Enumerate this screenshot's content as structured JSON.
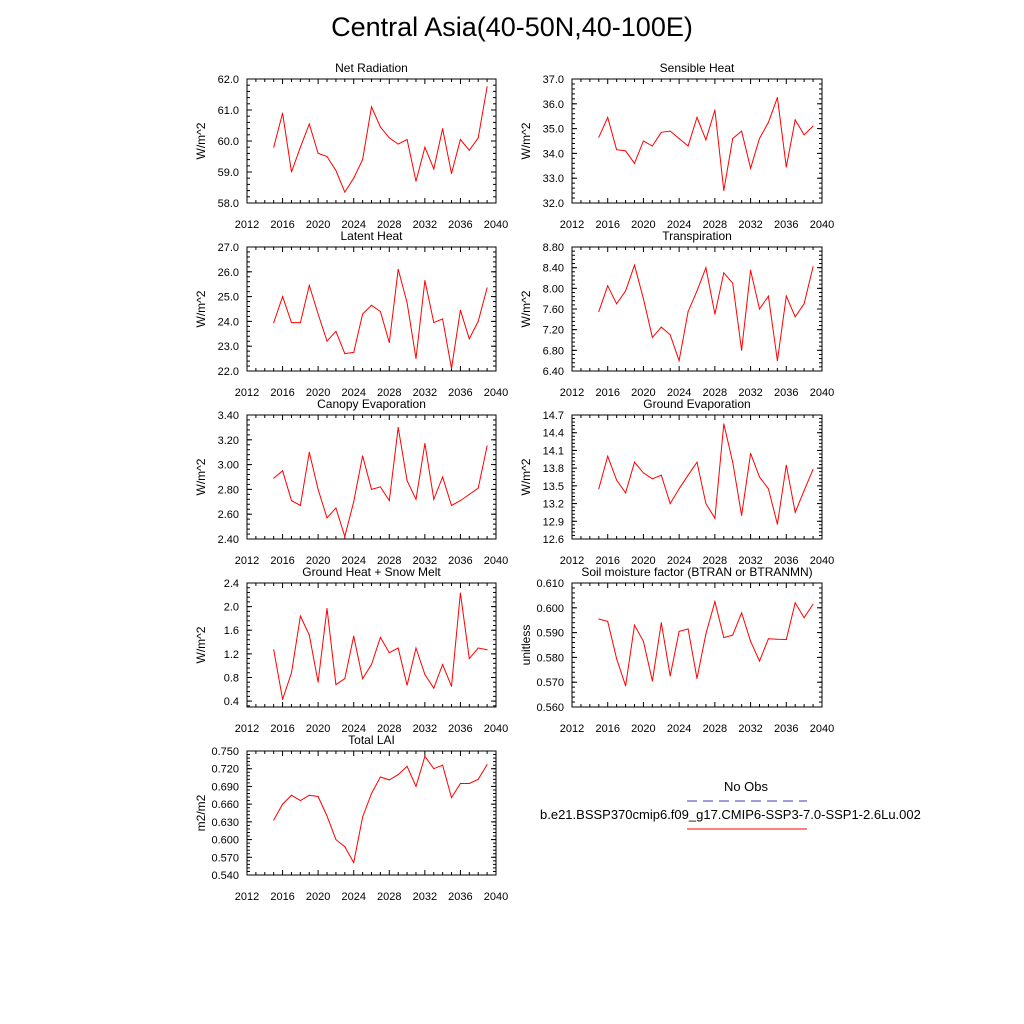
{
  "title": "Central Asia(40-50N,40-100E)",
  "colors": {
    "series": "#ff0000",
    "obs": "#3b3bb8",
    "axis": "#000000"
  },
  "legend": {
    "obs_label": "No Obs",
    "run_label": "b.e21.BSSP370cmip6.f09_g17.CMIP6-SSP3-7.0-SSP1-2.6Lu.002"
  },
  "chart_data": [
    {
      "type": "line",
      "title": "Net Radiation",
      "ylabel": "W/m^2",
      "xlabel": "",
      "xlim": [
        2012,
        2040
      ],
      "ylim": [
        58.0,
        62.0
      ],
      "xticks": [
        "2012",
        "2016",
        "2020",
        "2024",
        "2028",
        "2032",
        "2036",
        "2040"
      ],
      "yticks": [
        "58.0",
        "59.0",
        "60.0",
        "61.0",
        "62.0"
      ],
      "x": [
        2015,
        2016,
        2017,
        2018,
        2019,
        2020,
        2021,
        2022,
        2023,
        2024,
        2025,
        2026,
        2027,
        2028,
        2029,
        2030,
        2031,
        2032,
        2033,
        2034,
        2035,
        2036,
        2037,
        2038,
        2039
      ],
      "series": [
        {
          "values": [
            59.8,
            60.9,
            59.0,
            59.8,
            60.55,
            59.6,
            59.5,
            59.05,
            58.35,
            58.8,
            59.4,
            61.1,
            60.45,
            60.1,
            59.9,
            60.05,
            58.7,
            59.8,
            59.1,
            60.4,
            58.95,
            60.05,
            59.7,
            60.1,
            61.75
          ]
        }
      ]
    },
    {
      "type": "line",
      "title": "Sensible Heat",
      "ylabel": "W/m^2",
      "xlabel": "",
      "xlim": [
        2012,
        2040
      ],
      "ylim": [
        32.0,
        37.0
      ],
      "xticks": [
        "2012",
        "2016",
        "2020",
        "2024",
        "2028",
        "2032",
        "2036",
        "2040"
      ],
      "yticks": [
        "32.0",
        "33.0",
        "34.0",
        "35.0",
        "36.0",
        "37.0"
      ],
      "x": [
        2015,
        2016,
        2017,
        2018,
        2019,
        2020,
        2021,
        2022,
        2023,
        2024,
        2025,
        2026,
        2027,
        2028,
        2029,
        2030,
        2031,
        2032,
        2033,
        2034,
        2035,
        2036,
        2037,
        2038,
        2039
      ],
      "series": [
        {
          "values": [
            34.65,
            35.45,
            34.15,
            34.1,
            33.6,
            34.5,
            34.3,
            34.85,
            34.9,
            34.6,
            34.3,
            35.45,
            34.55,
            35.75,
            32.5,
            34.6,
            34.9,
            33.4,
            34.6,
            35.25,
            36.25,
            33.45,
            35.35,
            34.75,
            35.1
          ]
        }
      ]
    },
    {
      "type": "line",
      "title": "Latent Heat",
      "ylabel": "W/m^2",
      "xlabel": "",
      "xlim": [
        2012,
        2040
      ],
      "ylim": [
        22.0,
        27.0
      ],
      "xticks": [
        "2012",
        "2016",
        "2020",
        "2024",
        "2028",
        "2032",
        "2036",
        "2040"
      ],
      "yticks": [
        "22.0",
        "23.0",
        "24.0",
        "25.0",
        "26.0",
        "27.0"
      ],
      "x": [
        2015,
        2016,
        2017,
        2018,
        2019,
        2020,
        2021,
        2022,
        2023,
        2024,
        2025,
        2026,
        2027,
        2028,
        2029,
        2030,
        2031,
        2032,
        2033,
        2034,
        2035,
        2036,
        2037,
        2038,
        2039
      ],
      "series": [
        {
          "values": [
            23.95,
            25.0,
            23.95,
            23.95,
            25.45,
            24.3,
            23.2,
            23.6,
            22.7,
            22.75,
            24.3,
            24.65,
            24.4,
            23.15,
            26.1,
            24.75,
            22.5,
            25.65,
            23.95,
            24.1,
            22.1,
            24.45,
            23.3,
            24.0,
            25.35
          ]
        }
      ]
    },
    {
      "type": "line",
      "title": "Transpiration",
      "ylabel": "W/m^2",
      "xlabel": "",
      "xlim": [
        2012,
        2040
      ],
      "ylim": [
        6.4,
        8.8
      ],
      "xticks": [
        "2012",
        "2016",
        "2020",
        "2024",
        "2028",
        "2032",
        "2036",
        "2040"
      ],
      "yticks": [
        "6.40",
        "6.80",
        "7.20",
        "7.60",
        "8.00",
        "8.40",
        "8.80"
      ],
      "x": [
        2015,
        2016,
        2017,
        2018,
        2019,
        2020,
        2021,
        2022,
        2023,
        2024,
        2025,
        2026,
        2027,
        2028,
        2029,
        2030,
        2031,
        2032,
        2033,
        2034,
        2035,
        2036,
        2037,
        2038,
        2039
      ],
      "series": [
        {
          "values": [
            7.55,
            8.05,
            7.7,
            7.95,
            8.45,
            7.8,
            7.05,
            7.25,
            7.1,
            6.6,
            7.55,
            7.95,
            8.4,
            7.5,
            8.3,
            8.1,
            6.8,
            8.35,
            7.6,
            7.85,
            6.6,
            7.85,
            7.45,
            7.7,
            8.42
          ]
        }
      ]
    },
    {
      "type": "line",
      "title": "Canopy Evaporation",
      "ylabel": "W/m^2",
      "xlabel": "",
      "xlim": [
        2012,
        2040
      ],
      "ylim": [
        2.4,
        3.4
      ],
      "xticks": [
        "2012",
        "2016",
        "2020",
        "2024",
        "2028",
        "2032",
        "2036",
        "2040"
      ],
      "yticks": [
        "2.40",
        "2.60",
        "2.80",
        "3.00",
        "3.20",
        "3.40"
      ],
      "x": [
        2015,
        2016,
        2017,
        2018,
        2019,
        2020,
        2021,
        2022,
        2023,
        2024,
        2025,
        2026,
        2027,
        2028,
        2029,
        2030,
        2031,
        2032,
        2033,
        2034,
        2035,
        2036,
        2037,
        2038,
        2039
      ],
      "series": [
        {
          "values": [
            2.89,
            2.95,
            2.71,
            2.67,
            3.1,
            2.8,
            2.57,
            2.65,
            2.42,
            2.7,
            3.07,
            2.8,
            2.82,
            2.71,
            3.3,
            2.87,
            2.72,
            3.17,
            2.72,
            2.9,
            2.67,
            2.71,
            2.76,
            2.81,
            3.15
          ]
        }
      ]
    },
    {
      "type": "line",
      "title": "Ground Evaporation",
      "ylabel": "W/m^2",
      "xlabel": "",
      "xlim": [
        2012,
        2040
      ],
      "ylim": [
        12.6,
        14.7
      ],
      "xticks": [
        "2012",
        "2016",
        "2020",
        "2024",
        "2028",
        "2032",
        "2036",
        "2040"
      ],
      "yticks": [
        "12.6",
        "12.9",
        "13.2",
        "13.5",
        "13.8",
        "14.1",
        "14.4",
        "14.7"
      ],
      "x": [
        2015,
        2016,
        2017,
        2018,
        2019,
        2020,
        2021,
        2022,
        2023,
        2024,
        2025,
        2026,
        2027,
        2028,
        2029,
        2030,
        2031,
        2032,
        2033,
        2034,
        2035,
        2036,
        2037,
        2038,
        2039
      ],
      "series": [
        {
          "values": [
            13.45,
            14.0,
            13.6,
            13.38,
            13.9,
            13.72,
            13.62,
            13.68,
            13.2,
            13.45,
            13.68,
            13.9,
            13.2,
            12.95,
            14.55,
            13.9,
            13.0,
            14.05,
            13.65,
            13.45,
            12.85,
            13.85,
            13.05,
            13.42,
            13.78
          ]
        }
      ]
    },
    {
      "type": "line",
      "title": "Ground Heat + Snow Melt",
      "ylabel": "W/m^2",
      "xlabel": "",
      "xlim": [
        2012,
        2040
      ],
      "ylim": [
        0.3,
        2.4
      ],
      "xticks": [
        "2012",
        "2016",
        "2020",
        "2024",
        "2028",
        "2032",
        "2036",
        "2040"
      ],
      "yticks": [
        "0.4",
        "0.8",
        "1.2",
        "1.6",
        "2.0",
        "2.4"
      ],
      "x": [
        2015,
        2016,
        2017,
        2018,
        2019,
        2020,
        2021,
        2022,
        2023,
        2024,
        2025,
        2026,
        2027,
        2028,
        2029,
        2030,
        2031,
        2032,
        2033,
        2034,
        2035,
        2036,
        2037,
        2038,
        2039
      ],
      "series": [
        {
          "values": [
            1.27,
            0.43,
            0.88,
            1.84,
            1.52,
            0.72,
            1.97,
            0.68,
            0.78,
            1.5,
            0.78,
            1.02,
            1.48,
            1.22,
            1.3,
            0.67,
            1.3,
            0.85,
            0.62,
            1.02,
            0.65,
            2.23,
            1.12,
            1.3,
            1.27
          ]
        }
      ]
    },
    {
      "type": "line",
      "title": "Soil moisture factor (BTRAN or BTRANMN)",
      "ylabel": "unitless",
      "xlabel": "",
      "xlim": [
        2012,
        2040
      ],
      "ylim": [
        0.56,
        0.61
      ],
      "xticks": [
        "2012",
        "2016",
        "2020",
        "2024",
        "2028",
        "2032",
        "2036",
        "2040"
      ],
      "yticks": [
        "0.560",
        "0.570",
        "0.580",
        "0.590",
        "0.600",
        "0.610"
      ],
      "x": [
        2015,
        2016,
        2017,
        2018,
        2019,
        2020,
        2021,
        2022,
        2023,
        2024,
        2025,
        2026,
        2027,
        2028,
        2029,
        2030,
        2031,
        2032,
        2033,
        2034,
        2035,
        2036,
        2037,
        2038,
        2039
      ],
      "series": [
        {
          "values": [
            0.5955,
            0.5945,
            0.5795,
            0.5685,
            0.593,
            0.5865,
            0.5705,
            0.594,
            0.5725,
            0.5905,
            0.5915,
            0.5715,
            0.5895,
            0.6025,
            0.588,
            0.589,
            0.598,
            0.5865,
            0.5785,
            0.5875,
            0.5873,
            0.5872,
            0.602,
            0.596,
            0.6015
          ]
        }
      ]
    },
    {
      "type": "line",
      "title": "Total LAI",
      "ylabel": "m2/m2",
      "xlabel": "",
      "xlim": [
        2012,
        2040
      ],
      "ylim": [
        0.54,
        0.75
      ],
      "xticks": [
        "2012",
        "2016",
        "2020",
        "2024",
        "2028",
        "2032",
        "2036",
        "2040"
      ],
      "yticks": [
        "0.540",
        "0.570",
        "0.600",
        "0.630",
        "0.660",
        "0.690",
        "0.720",
        "0.750"
      ],
      "x": [
        2015,
        2016,
        2017,
        2018,
        2019,
        2020,
        2021,
        2022,
        2023,
        2024,
        2025,
        2026,
        2027,
        2028,
        2029,
        2030,
        2031,
        2032,
        2033,
        2034,
        2035,
        2036,
        2037,
        2038,
        2039
      ],
      "series": [
        {
          "values": [
            0.633,
            0.66,
            0.675,
            0.666,
            0.675,
            0.673,
            0.64,
            0.6,
            0.588,
            0.561,
            0.638,
            0.678,
            0.706,
            0.701,
            0.71,
            0.724,
            0.69,
            0.741,
            0.72,
            0.726,
            0.671,
            0.695,
            0.695,
            0.702,
            0.727
          ]
        }
      ]
    }
  ]
}
